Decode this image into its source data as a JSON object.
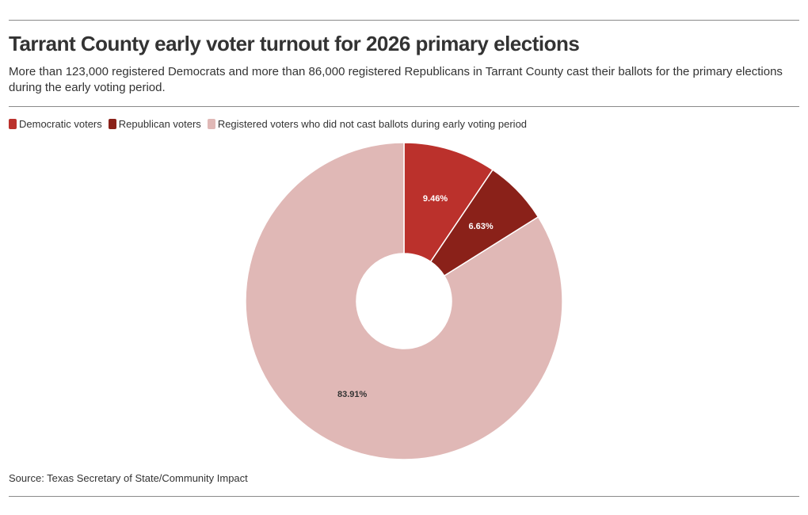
{
  "chart_data": {
    "type": "pie",
    "title": "Tarrant County early voter turnout for 2026 primary elections",
    "subtitle": "More than 123,000 registered Democrats and more than 86,000 registered Republicans in Tarrant County cast their ballots for the primary elections during the early voting period.",
    "categories": [
      "Democratic voters",
      "Republican voters",
      "Registered voters who did not cast ballots during early voting period"
    ],
    "values": [
      9.46,
      6.63,
      83.91
    ],
    "data_labels": [
      "9.46%",
      "6.63%",
      "83.91%"
    ],
    "colors": [
      "#bb312c",
      "#8a2119",
      "#e0b8b6"
    ],
    "label_colors": [
      "#ffffff",
      "#ffffff",
      "#333333"
    ],
    "donut": true,
    "legend_position": "top-left",
    "source": "Source: Texas Secretary of State/Community Impact"
  }
}
